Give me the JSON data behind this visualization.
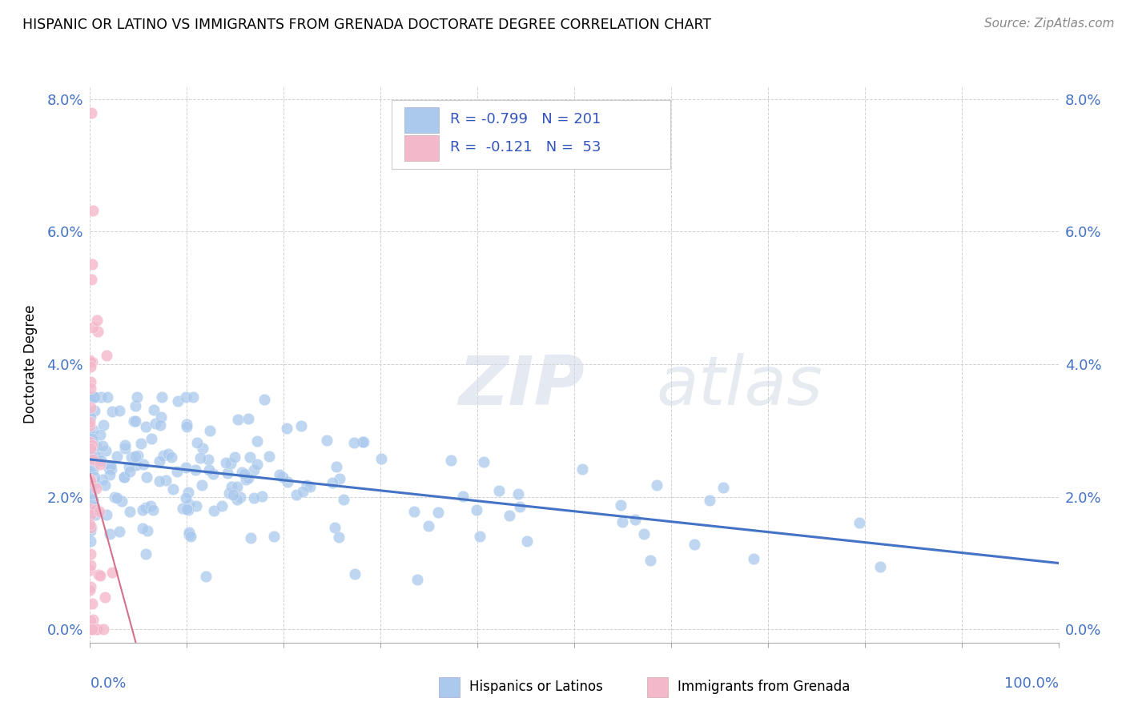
{
  "title": "HISPANIC OR LATINO VS IMMIGRANTS FROM GRENADA DOCTORATE DEGREE CORRELATION CHART",
  "source": "Source: ZipAtlas.com",
  "ylabel": "Doctorate Degree",
  "r_blue": -0.799,
  "n_blue": 201,
  "r_pink": -0.121,
  "n_pink": 53,
  "blue_color": "#aac9ed",
  "pink_color": "#f4b8cb",
  "blue_line_color": "#4472c4",
  "pink_line_color": "#d4718a",
  "legend_blue_label": "Hispanics or Latinos",
  "legend_pink_label": "Immigrants from Grenada",
  "ytick_vals": [
    0.0,
    0.02,
    0.04,
    0.06,
    0.08
  ],
  "ytick_labels": [
    "0.0%",
    "2.0%",
    "4.0%",
    "6.0%",
    "8.0%"
  ],
  "xlim": [
    0.0,
    1.0
  ],
  "ylim": [
    -0.002,
    0.082
  ]
}
